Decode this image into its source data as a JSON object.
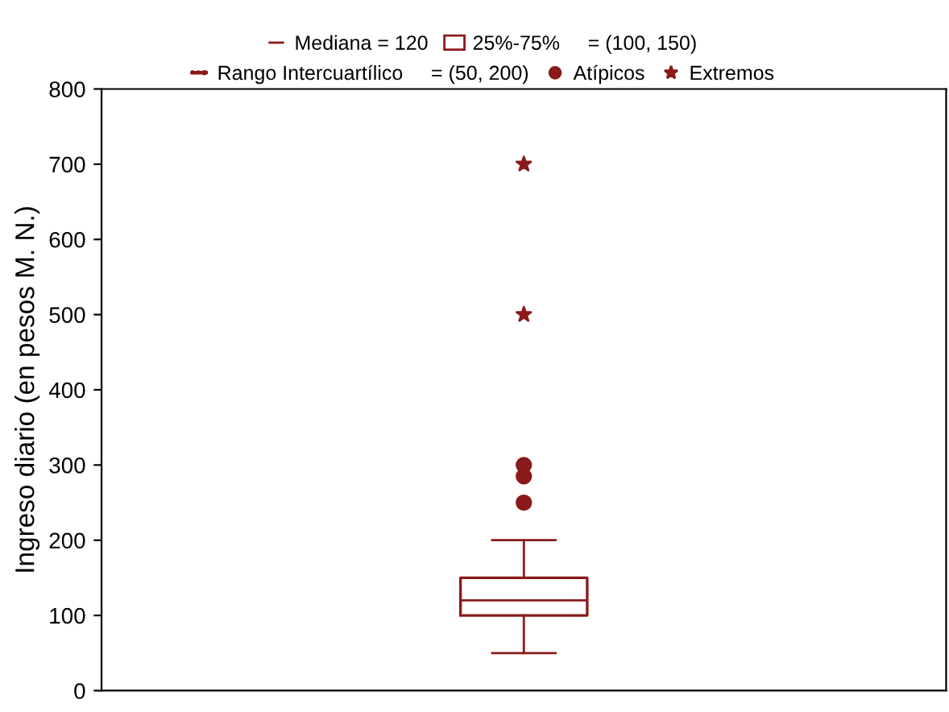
{
  "chart_data": {
    "type": "box",
    "ylabel": "Ingreso diario (en pesos M. N.)",
    "categories": [
      null
    ],
    "ylim": [
      0,
      800
    ],
    "yticks": [
      0,
      100,
      200,
      300,
      400,
      500,
      600,
      700,
      800
    ],
    "grid": false,
    "tick_labels": "y",
    "annotations": [
      "Mediana = 120",
      "25%-75%     = (100, 150)",
      "Rango Intercuartílico     = (50, 200)",
      "Atípicos",
      "Extremos"
    ],
    "series": [
      {
        "color": "#8b1a1a",
        "boxes": [
          {
            "low": 50,
            "q1": 100,
            "median": 120,
            "q3": 150,
            "high": 200,
            "outliers": [
              250,
              285,
              300,
              500,
              700
            ]
          }
        ]
      }
    ]
  }
}
